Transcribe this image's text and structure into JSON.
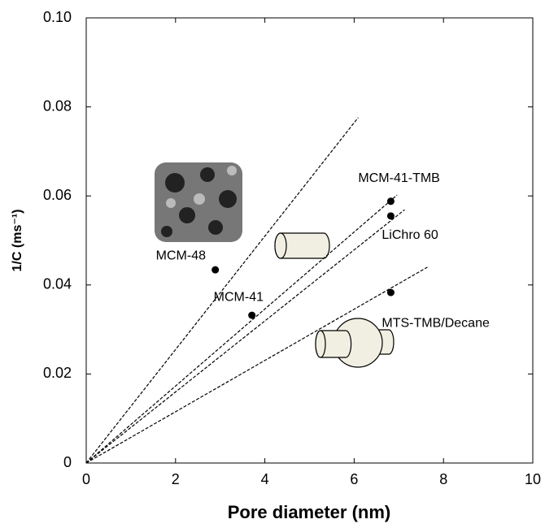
{
  "chart_data": {
    "type": "scatter",
    "xlabel": "Pore diameter (nm)",
    "ylabel": "1/C (ms⁻¹)",
    "xlim": [
      0,
      10
    ],
    "ylim": [
      0,
      0.1
    ],
    "xticks": [
      0,
      2,
      4,
      6,
      8,
      10
    ],
    "yticks": [
      0,
      0.02,
      0.04,
      0.06,
      0.08,
      {
        "value": 0.1,
        "label": "0.10"
      }
    ],
    "color": "#000000",
    "points": [
      {
        "label": "MCM-48",
        "x": 2.89,
        "y": 0.0434
      },
      {
        "label": "MCM-41",
        "x": 3.71,
        "y": 0.0332
      },
      {
        "label": "MCM-41-TMB",
        "x": 6.82,
        "y": 0.0588
      },
      {
        "label": "LiChro 60",
        "x": 6.82,
        "y": 0.0555
      },
      {
        "label": "MTS-TMB/Decane",
        "x": 6.82,
        "y": 0.0383
      }
    ],
    "fit_lines": [
      {
        "x": [
          0,
          6.09
        ],
        "y": [
          0,
          0.0776
        ]
      },
      {
        "x": [
          0,
          6.96
        ],
        "y": [
          0,
          0.0602
        ]
      },
      {
        "x": [
          0,
          7.13
        ],
        "y": [
          0,
          0.0569
        ]
      },
      {
        "x": [
          0,
          7.64
        ],
        "y": [
          0,
          0.044
        ]
      }
    ]
  }
}
